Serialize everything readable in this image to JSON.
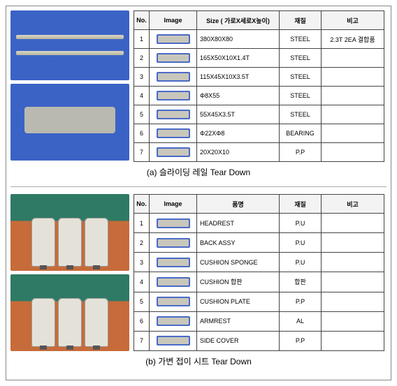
{
  "section_a": {
    "caption": "(a) 슬라이딩 레일 Tear Down",
    "headers": {
      "no": "No.",
      "image": "Image",
      "main": "Size ( 가로X세로X높이)",
      "material": "재질",
      "note": "비고"
    },
    "rows": [
      {
        "no": "1",
        "main": "380X80X80",
        "material": "STEEL",
        "note": "2.3T 2EA 결합품"
      },
      {
        "no": "2",
        "main": "165X50X10X1.4T",
        "material": "STEEL",
        "note": ""
      },
      {
        "no": "3",
        "main": "115X45X10X3.5T",
        "material": "STEEL",
        "note": ""
      },
      {
        "no": "4",
        "main": "Φ8X55",
        "material": "STEEL",
        "note": ""
      },
      {
        "no": "5",
        "main": "55X45X3.5T",
        "material": "STEEL",
        "note": ""
      },
      {
        "no": "6",
        "main": "Φ22XΦ8",
        "material": "BEARING",
        "note": ""
      },
      {
        "no": "7",
        "main": "20X20X10",
        "material": "P.P",
        "note": ""
      }
    ]
  },
  "section_b": {
    "caption": "(b) 가변 접이 시트 Tear Down",
    "headers": {
      "no": "No.",
      "image": "Image",
      "main": "품명",
      "material": "재질",
      "note": "비고"
    },
    "rows": [
      {
        "no": "1",
        "main": "HEADREST",
        "material": "P.U",
        "note": ""
      },
      {
        "no": "2",
        "main": "BACK ASSY",
        "material": "P.U",
        "note": ""
      },
      {
        "no": "3",
        "main": "CUSHION SPONGE",
        "material": "P.U",
        "note": ""
      },
      {
        "no": "4",
        "main": "CUSHION 합판",
        "material": "합판",
        "note": ""
      },
      {
        "no": "5",
        "main": "CUSHION PLATE",
        "material": "P.P",
        "note": ""
      },
      {
        "no": "6",
        "main": "ARMREST",
        "material": "AL",
        "note": ""
      },
      {
        "no": "7",
        "main": "SIDE COVER",
        "material": "P.P",
        "note": ""
      }
    ]
  }
}
